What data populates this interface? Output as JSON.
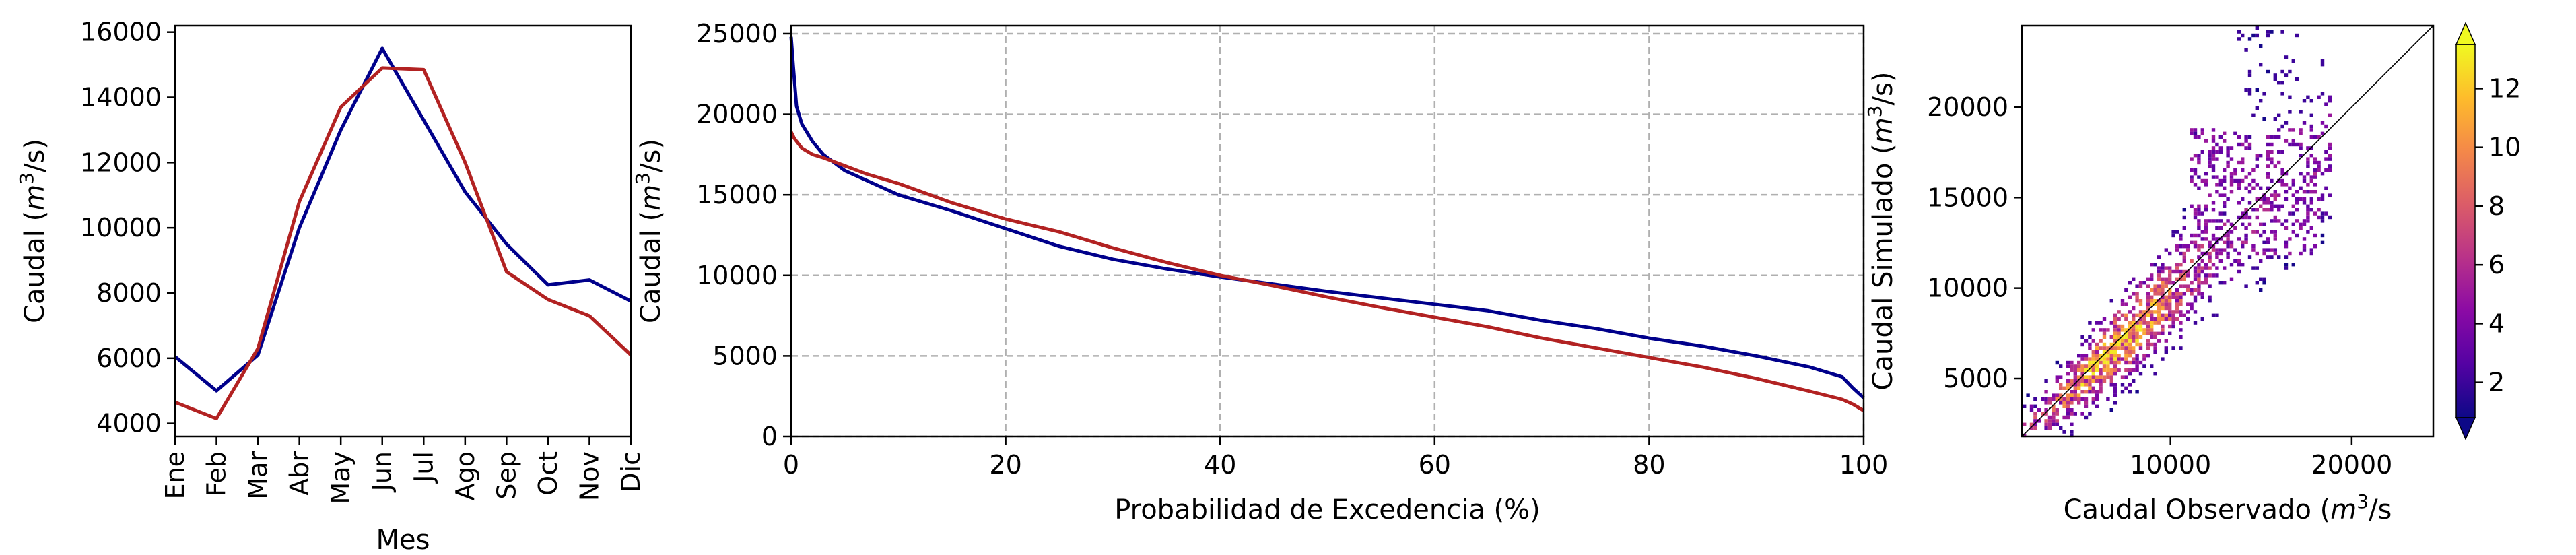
{
  "chart_data": [
    {
      "type": "line",
      "xlabel": "Mes",
      "ylabel": "Caudal (m³/s)",
      "ylabel_parts": {
        "before": "Caudal (",
        "unit": "m",
        "exp": "3",
        "after": "/s)"
      },
      "categories": [
        "Ene",
        "Feb",
        "Mar",
        "Abr",
        "May",
        "Jun",
        "Jul",
        "Ago",
        "Sep",
        "Oct",
        "Nov",
        "Dic"
      ],
      "ylim": [
        3600,
        16200
      ],
      "yticks": [
        4000,
        6000,
        8000,
        10000,
        12000,
        14000,
        16000
      ],
      "grid": false,
      "series": [
        {
          "color": "#00008b",
          "values": [
            6050,
            5000,
            6100,
            10000,
            13000,
            15500,
            13300,
            11100,
            9500,
            8250,
            8400,
            7750
          ]
        },
        {
          "color": "#b22222",
          "values": [
            4650,
            4150,
            6300,
            10800,
            13700,
            14900,
            14850,
            12000,
            8650,
            7800,
            7300,
            6100
          ]
        }
      ]
    },
    {
      "type": "line",
      "xlabel": "Probabilidad de Excedencia (%)",
      "ylabel": "Caudal (m³/s)",
      "ylabel_parts": {
        "before": "Caudal (",
        "unit": "m",
        "exp": "3",
        "after": "/s)"
      },
      "xlim": [
        0,
        100
      ],
      "ylim": [
        0,
        25500
      ],
      "xticks": [
        0,
        20,
        40,
        60,
        80,
        100
      ],
      "yticks": [
        0,
        5000,
        10000,
        15000,
        20000,
        25000
      ],
      "grid": true,
      "series": [
        {
          "color": "#00008b",
          "x": [
            0,
            0.2,
            0.5,
            1,
            2,
            3,
            5,
            7,
            10,
            15,
            20,
            25,
            30,
            35,
            40,
            45,
            50,
            55,
            60,
            65,
            70,
            75,
            80,
            85,
            90,
            95,
            98,
            99,
            100
          ],
          "y": [
            24800,
            23000,
            20500,
            19400,
            18300,
            17500,
            16500,
            15900,
            15000,
            14000,
            12900,
            11800,
            11000,
            10400,
            9900,
            9450,
            9000,
            8600,
            8200,
            7800,
            7200,
            6700,
            6100,
            5600,
            5000,
            4300,
            3700,
            3000,
            2400
          ]
        },
        {
          "color": "#b22222",
          "x": [
            0,
            0.3,
            1,
            2,
            3,
            5,
            7,
            10,
            15,
            20,
            25,
            30,
            35,
            40,
            45,
            50,
            55,
            60,
            65,
            70,
            75,
            80,
            85,
            90,
            95,
            98,
            99,
            100
          ],
          "y": [
            18900,
            18500,
            17900,
            17500,
            17300,
            16800,
            16300,
            15700,
            14500,
            13500,
            12700,
            11700,
            10800,
            10000,
            9350,
            8650,
            8000,
            7400,
            6800,
            6100,
            5500,
            4900,
            4300,
            3600,
            2800,
            2300,
            2000,
            1600
          ]
        }
      ]
    },
    {
      "type": "heatmap",
      "subtype": "2D histogram",
      "xlabel": "Caudal Observado (m³/s",
      "xlabel_parts": {
        "before": "Caudal Observado (",
        "unit": "m",
        "exp": "3",
        "after": "/s"
      },
      "ylabel": "Caudal Simulado (m³/s)",
      "ylabel_parts": {
        "before": "Caudal Simulado (",
        "unit": "m",
        "exp": "3",
        "after": "/s)"
      },
      "xlim": [
        1800,
        24500
      ],
      "ylim": [
        1800,
        24500
      ],
      "xticks": [
        10000,
        20000
      ],
      "yticks": [
        5000,
        10000,
        15000,
        20000
      ],
      "reference_line": "y = x",
      "colorbar": {
        "ticks": [
          2,
          4,
          6,
          8,
          10,
          12
        ],
        "range": [
          0.8,
          13.5
        ],
        "colormap": "plasma",
        "extend": "both"
      }
    }
  ]
}
